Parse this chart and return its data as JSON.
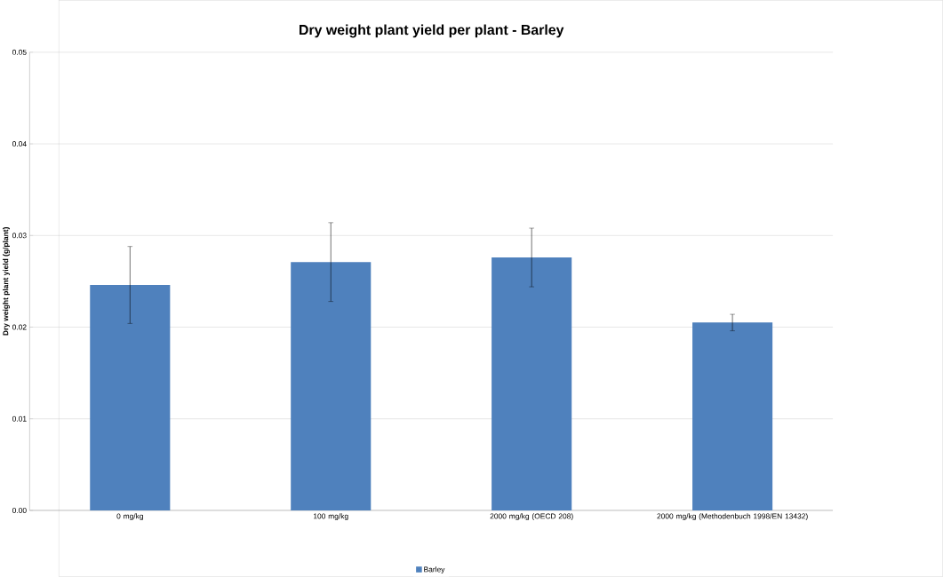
{
  "chart_data": {
    "type": "bar",
    "title": "Dry weight plant yield per plant - Barley",
    "ylabel": "Dry weight plant yield (g/plant)",
    "categories": [
      "0 mg/kg",
      "100 mg/kg",
      "2000 mg/kg (OECD 208)",
      "2000 mg/kg (Methodenbuch 1998/EN 13432)"
    ],
    "series": [
      {
        "name": "Barley",
        "color": "#4f81bd",
        "values": [
          0.0246,
          0.0271,
          0.0276,
          0.0205
        ],
        "errors": [
          0.0042,
          0.0043,
          0.0032,
          0.0009
        ]
      }
    ],
    "ylim": [
      0,
      0.05
    ],
    "yticks": [
      {
        "value": 0,
        "label": "0.00"
      },
      0.01,
      0.02,
      0.03,
      0.04,
      0.05
    ],
    "grid": "y",
    "legend": "bottom"
  }
}
